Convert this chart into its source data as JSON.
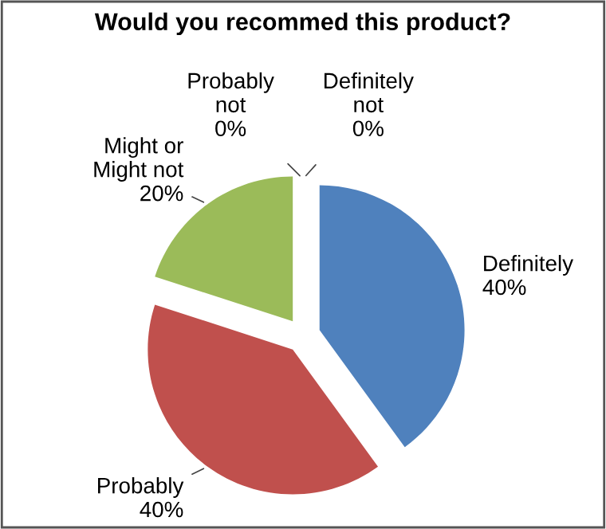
{
  "chart_data": {
    "type": "pie",
    "title": "Would you recommed this product?",
    "categories": [
      "Definitely",
      "Probably",
      "Might or Might not",
      "Probably not",
      "Definitely not"
    ],
    "values": [
      40,
      40,
      20,
      0,
      0
    ],
    "value_labels": [
      "40%",
      "40%",
      "20%",
      "0%",
      "0%"
    ],
    "colors": [
      "#4f81bd",
      "#c0504d",
      "#9bbb59",
      "#8064a2",
      "#4bacc6"
    ],
    "legend": false
  }
}
